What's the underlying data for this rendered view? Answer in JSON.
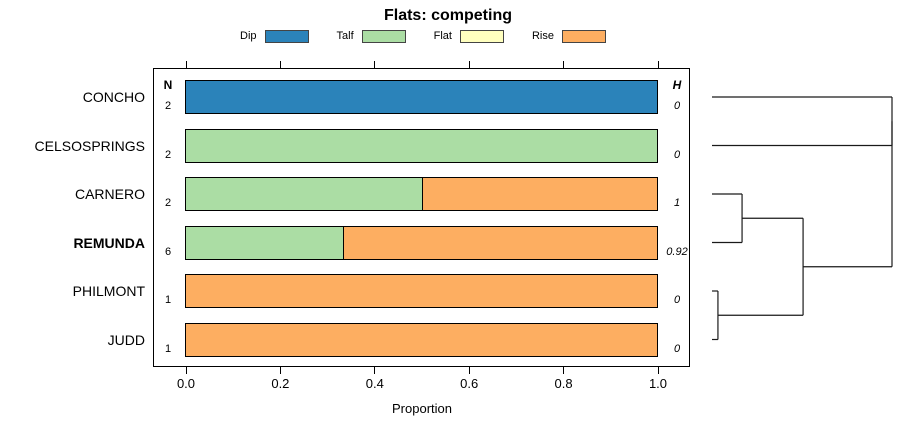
{
  "title": "Flats: competing",
  "columns": {
    "n_header": "N",
    "h_header": "H"
  },
  "legend": {
    "items": [
      {
        "label": "Dip",
        "color": "#2B83BA"
      },
      {
        "label": "Talf",
        "color": "#ABDDA4"
      },
      {
        "label": "Flat",
        "color": "#FFFFBF"
      },
      {
        "label": "Rise",
        "color": "#FDAE61"
      }
    ]
  },
  "chart_data": {
    "type": "bar",
    "variant": "horizontal-stacked-proportion-with-dendrogram",
    "title": "Flats: competing",
    "xlabel": "Proportion",
    "xlim": [
      0,
      1
    ],
    "xticks": [
      "0.0",
      "0.2",
      "0.4",
      "0.6",
      "0.8",
      "1.0"
    ],
    "categories": [
      "CONCHO",
      "CELSOSPRINGS",
      "CARNERO",
      "REMUNDA",
      "PHILMONT",
      "JUDD"
    ],
    "emphasis": [
      false,
      false,
      false,
      true,
      false,
      false
    ],
    "n_values": [
      "2",
      "2",
      "2",
      "6",
      "1",
      "1"
    ],
    "h_values": [
      "0",
      "0",
      "1",
      "0.92",
      "0",
      "0"
    ],
    "series": [
      {
        "name": "Dip",
        "color": "#2B83BA",
        "values": [
          1,
          0,
          0,
          0,
          0,
          0
        ]
      },
      {
        "name": "Talf",
        "color": "#ABDDA4",
        "values": [
          0,
          1,
          0.5,
          0.3333,
          0,
          0
        ]
      },
      {
        "name": "Flat",
        "color": "#FFFFBF",
        "values": [
          0,
          0,
          0,
          0,
          0,
          0
        ]
      },
      {
        "name": "Rise",
        "color": "#FDAE61",
        "values": [
          0,
          0,
          0.5,
          0.6667,
          1,
          1
        ]
      }
    ],
    "dendrogram": {
      "orientation": "right",
      "leaves": [
        "CONCHO",
        "CELSOSPRINGS",
        "CARNERO",
        "REMUNDA",
        "PHILMONT",
        "JUDD"
      ],
      "merges": [
        {
          "id": "m1",
          "children": [
            4,
            5
          ],
          "height": 0.033
        },
        {
          "id": "m2",
          "children": [
            2,
            3
          ],
          "height": 0.167
        },
        {
          "id": "m3",
          "children": [
            "m2",
            "m1"
          ],
          "height": 0.506
        },
        {
          "id": "m4",
          "children": [
            0,
            1
          ],
          "height": 1.0
        },
        {
          "id": "m5",
          "children": [
            "m4",
            "m3"
          ],
          "height": 1.0
        }
      ]
    }
  }
}
